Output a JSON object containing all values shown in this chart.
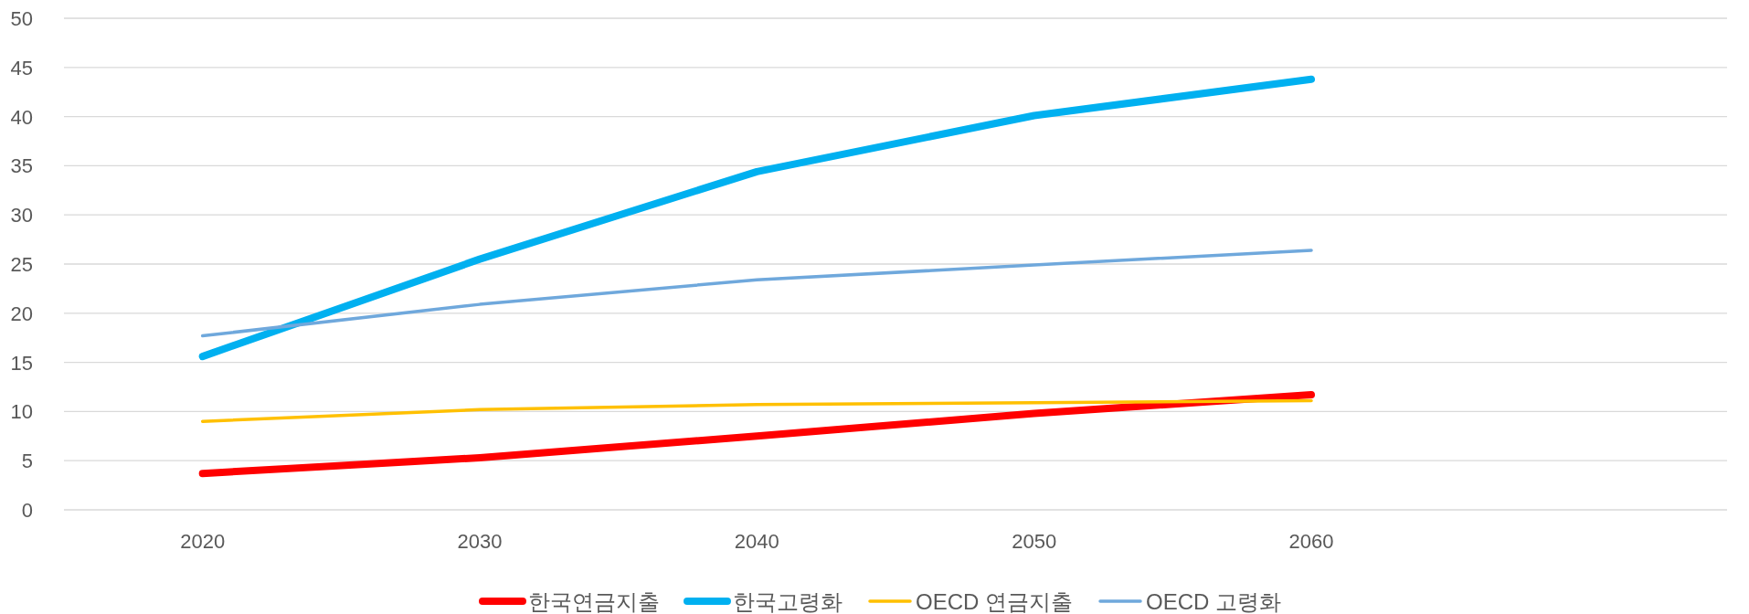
{
  "chart_data": {
    "type": "line",
    "categories": [
      "2020",
      "2030",
      "2040",
      "2050",
      "2060",
      null
    ],
    "ylim": [
      0,
      50
    ],
    "yticks": [
      0,
      5,
      10,
      15,
      20,
      25,
      30,
      35,
      40,
      45,
      50
    ],
    "grid": "y",
    "legend": "bottom",
    "marker": "none",
    "line_style": "solid",
    "series": [
      {
        "name": "한국연금지출",
        "color": "#ff0000",
        "values": [
          3.7,
          5.3,
          7.5,
          9.8,
          11.7,
          null
        ]
      },
      {
        "name": "한국고령화",
        "color": "#00b0f0",
        "values": [
          15.6,
          25.5,
          34.4,
          40.1,
          43.8,
          null
        ]
      },
      {
        "name": "OECD 연금지출",
        "color": "#ffc000",
        "values": [
          9.0,
          10.2,
          10.7,
          10.9,
          11.1,
          null
        ]
      },
      {
        "name": "OECD 고령화",
        "color": "#6fa8dc",
        "values": [
          17.7,
          20.9,
          23.4,
          24.9,
          26.4,
          null
        ]
      }
    ]
  }
}
